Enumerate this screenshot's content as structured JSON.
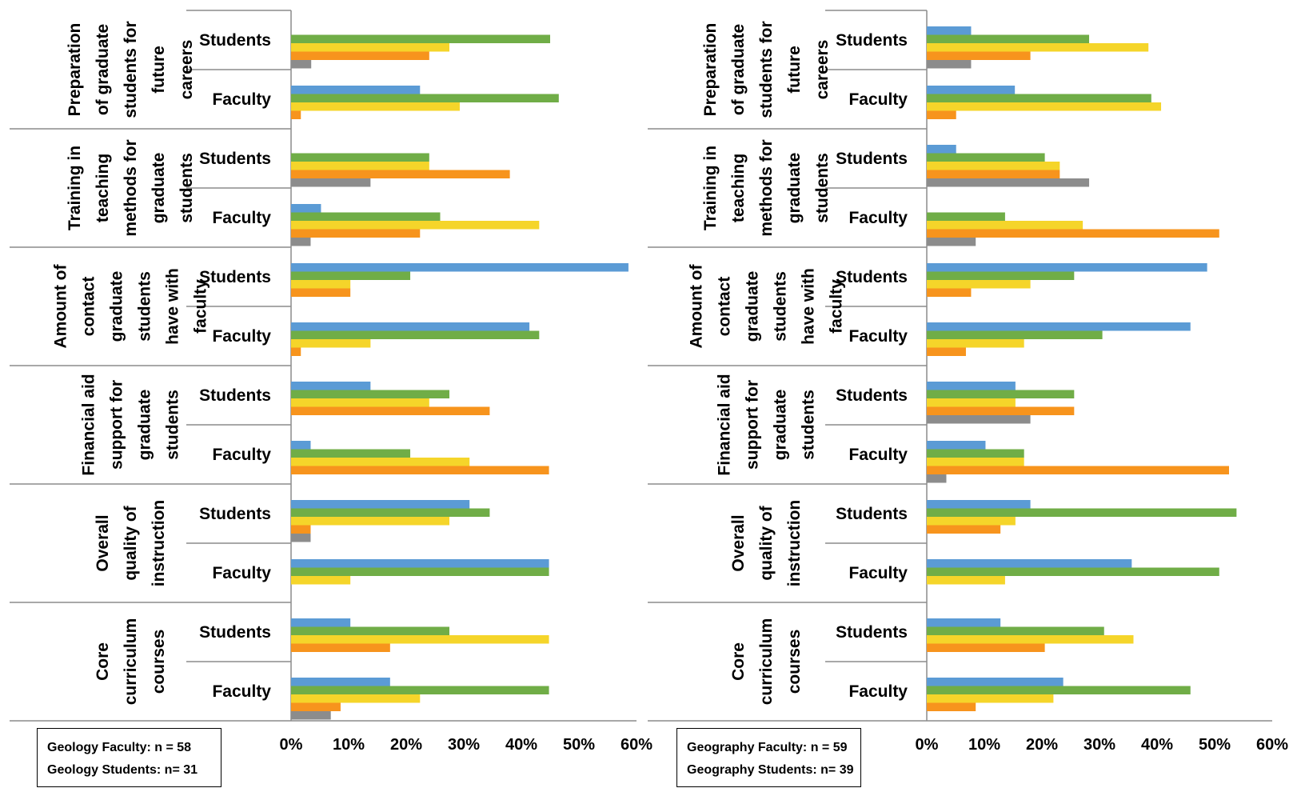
{
  "colors": {
    "series": [
      "#5b9bd5",
      "#70ad47",
      "#f5d52a",
      "#f7941d",
      "#8c8c8c"
    ],
    "axis": "#8c8c8c",
    "text": "#000000"
  },
  "chart_data": [
    {
      "type": "bar",
      "orientation": "horizontal",
      "xlim": [
        0,
        60
      ],
      "tick_labels": [
        "0%",
        "10%",
        "20%",
        "30%",
        "40%",
        "50%",
        "60%"
      ],
      "note": [
        "Geology Faculty: n = 58",
        "Geology Students: n= 31"
      ],
      "groups": [
        {
          "label": [
            "Preparation",
            "of graduate",
            "students for",
            "future",
            "careers"
          ],
          "rows": [
            {
              "label": "Students",
              "values": [
                0,
                45,
                27.5,
                24,
                3.5
              ]
            },
            {
              "label": "Faculty",
              "values": [
                22.4,
                46.5,
                29.3,
                1.7,
                0
              ]
            }
          ]
        },
        {
          "label": [
            "Training in",
            "teaching",
            "methods for",
            "graduate",
            "students"
          ],
          "rows": [
            {
              "label": "Students",
              "values": [
                0,
                24,
                24,
                38,
                13.8
              ]
            },
            {
              "label": "Faculty",
              "values": [
                5.2,
                25.9,
                43.1,
                22.4,
                3.4
              ]
            }
          ]
        },
        {
          "label": [
            "Amount of",
            "contact",
            "graduate",
            "students",
            "have with",
            "faculty"
          ],
          "rows": [
            {
              "label": "Students",
              "values": [
                58.6,
                20.7,
                10.3,
                10.3,
                0
              ]
            },
            {
              "label": "Faculty",
              "values": [
                41.4,
                43.1,
                13.8,
                1.7,
                0
              ]
            }
          ]
        },
        {
          "label": [
            "Financial aid",
            "support for",
            "graduate",
            "students"
          ],
          "rows": [
            {
              "label": "Students",
              "values": [
                13.8,
                27.5,
                24,
                34.5,
                0
              ]
            },
            {
              "label": "Faculty",
              "values": [
                3.4,
                20.7,
                31,
                44.8,
                0
              ]
            }
          ]
        },
        {
          "label": [
            "Overall",
            "quality of",
            "instruction"
          ],
          "rows": [
            {
              "label": "Students",
              "values": [
                31,
                34.5,
                27.5,
                3.4,
                3.4
              ]
            },
            {
              "label": "Faculty",
              "values": [
                44.8,
                44.8,
                10.3,
                0,
                0
              ]
            }
          ]
        },
        {
          "label": [
            "Core",
            "curriculum",
            "courses"
          ],
          "rows": [
            {
              "label": "Students",
              "values": [
                10.3,
                27.5,
                44.8,
                17.2,
                0
              ]
            },
            {
              "label": "Faculty",
              "values": [
                17.2,
                44.8,
                22.4,
                8.6,
                6.9
              ]
            }
          ]
        }
      ]
    },
    {
      "type": "bar",
      "orientation": "horizontal",
      "xlim": [
        0,
        60
      ],
      "tick_labels": [
        "0%",
        "10%",
        "20%",
        "30%",
        "40%",
        "50%",
        "60%"
      ],
      "note": [
        "Geography Faculty: n = 59",
        "Geography Students: n= 39"
      ],
      "groups": [
        {
          "label": [
            "Preparation",
            "of graduate",
            "students for",
            "future",
            "careers"
          ],
          "rows": [
            {
              "label": "Students",
              "values": [
                7.7,
                28.2,
                38.5,
                18,
                7.7
              ]
            },
            {
              "label": "Faculty",
              "values": [
                15.3,
                39,
                40.7,
                5.1,
                0
              ]
            }
          ]
        },
        {
          "label": [
            "Training in",
            "teaching",
            "methods for",
            "graduate",
            "students"
          ],
          "rows": [
            {
              "label": "Students",
              "values": [
                5.1,
                20.5,
                23.1,
                23.1,
                28.2
              ]
            },
            {
              "label": "Faculty",
              "values": [
                0,
                13.6,
                27.1,
                50.8,
                8.5
              ]
            }
          ]
        },
        {
          "label": [
            "Amount of",
            "contact",
            "graduate",
            "students",
            "have with",
            "faculty"
          ],
          "rows": [
            {
              "label": "Students",
              "values": [
                48.7,
                25.6,
                18,
                7.7,
                0
              ]
            },
            {
              "label": "Faculty",
              "values": [
                45.8,
                30.5,
                16.9,
                6.8,
                0
              ]
            }
          ]
        },
        {
          "label": [
            "Financial aid",
            "support for",
            "graduate",
            "students"
          ],
          "rows": [
            {
              "label": "Students",
              "values": [
                15.4,
                25.6,
                15.4,
                25.6,
                18
              ]
            },
            {
              "label": "Faculty",
              "values": [
                10.2,
                16.9,
                16.9,
                52.5,
                3.4
              ]
            }
          ]
        },
        {
          "label": [
            "Overall",
            "quality of",
            "instruction"
          ],
          "rows": [
            {
              "label": "Students",
              "values": [
                18,
                53.8,
                15.4,
                12.8,
                0
              ]
            },
            {
              "label": "Faculty",
              "values": [
                35.6,
                50.8,
                13.6,
                0,
                0
              ]
            }
          ]
        },
        {
          "label": [
            "Core",
            "curriculum",
            "courses"
          ],
          "rows": [
            {
              "label": "Students",
              "values": [
                12.8,
                30.8,
                35.9,
                20.5,
                0
              ]
            },
            {
              "label": "Faculty",
              "values": [
                23.7,
                45.8,
                22,
                8.5,
                0
              ]
            }
          ]
        }
      ]
    }
  ]
}
